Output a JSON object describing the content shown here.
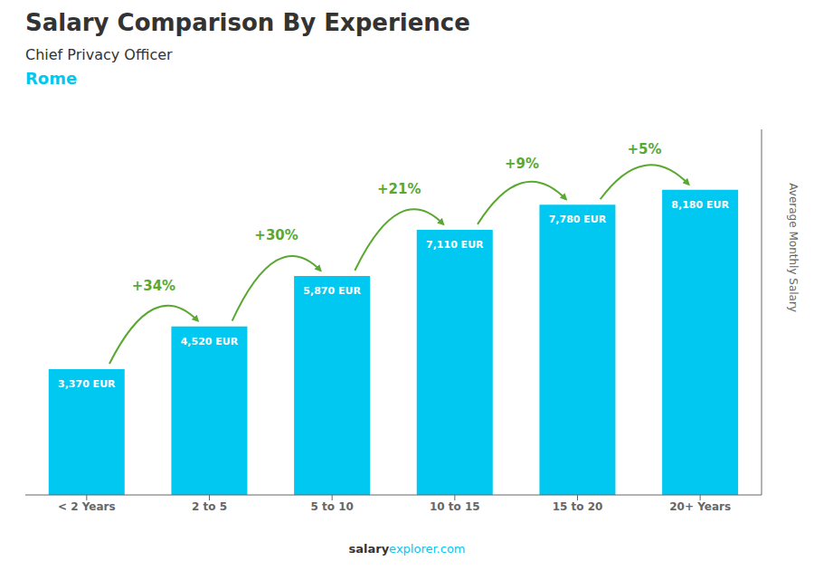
{
  "chart_data": {
    "type": "bar",
    "title": "Salary Comparison By Experience",
    "subtitle": "Chief Privacy Officer",
    "city": "Rome",
    "ylabel": "Average Monthly Salary",
    "footer": [
      "salary",
      "explorer.com"
    ],
    "categories": [
      "< 2 Years",
      "2 to 5",
      "5 to 10",
      "10 to 15",
      "15 to 20",
      "20+ Years"
    ],
    "values": [
      3370,
      4520,
      5870,
      7110,
      7780,
      8180
    ],
    "value_labels": [
      "3,370 EUR",
      "4,520 EUR",
      "5,870 EUR",
      "7,110 EUR",
      "7,780 EUR",
      "8,180 EUR"
    ],
    "annotations": [
      "+34%",
      "+30%",
      "+21%",
      "+9%",
      "+5%"
    ],
    "color": "#00c8f0",
    "ylim": [
      0,
      9800
    ],
    "data_labels": true,
    "tick_labels": "x",
    "grid": false
  }
}
